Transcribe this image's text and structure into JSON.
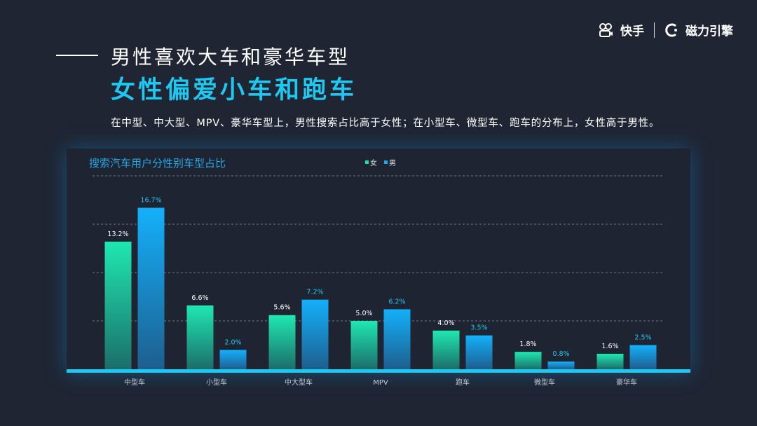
{
  "brand": {
    "name": "快手",
    "product": "磁力引擎"
  },
  "heading": {
    "line1": "男性喜欢大车和豪华车型",
    "line2": "女性偏爱小车和跑车",
    "description": "在中型、中大型、MPV、豪华车型上，男性搜索占比高于女性；在小型车、微型车、跑车的分布上，女性高于男性。"
  },
  "colors": {
    "female": "#1de0a8",
    "male": "#18a8f2",
    "accent": "#1ec8f0",
    "axis": "#1ec8f0"
  },
  "chart_data": {
    "type": "bar",
    "title": "搜索汽车用户分性别车型占比",
    "categories": [
      "中型车",
      "小型车",
      "中大型车",
      "MPV",
      "跑车",
      "微型车",
      "豪华车"
    ],
    "series": [
      {
        "name": "女",
        "values": [
          13.2,
          6.6,
          5.6,
          5.0,
          4.0,
          1.8,
          1.6
        ],
        "labels": [
          "13.2%",
          "6.6%",
          "5.6%",
          "5.0%",
          "4.0%",
          "1.8%",
          "1.6%"
        ]
      },
      {
        "name": "男",
        "values": [
          16.7,
          2.0,
          7.2,
          6.2,
          3.5,
          0.8,
          2.5
        ],
        "labels": [
          "16.7%",
          "2.0%",
          "7.2%",
          "6.2%",
          "3.5%",
          "0.8%",
          "2.5%"
        ]
      }
    ],
    "ylim": [
      0,
      20
    ],
    "grid": true,
    "legend": "top-center"
  }
}
